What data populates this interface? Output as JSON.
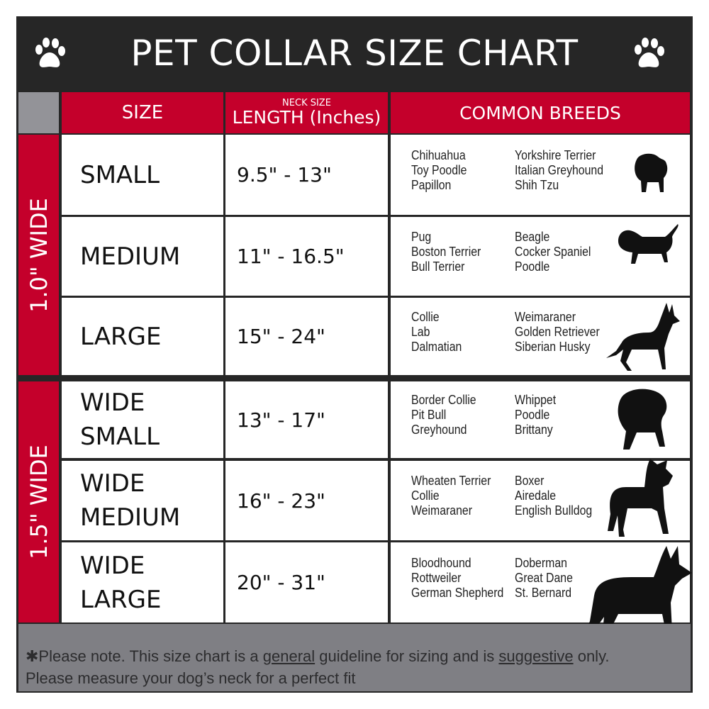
{
  "title": "PET COLLAR SIZE CHART",
  "headers": {
    "size": "SIZE",
    "length_small": "NECK SIZE",
    "length": "LENGTH (Inches)",
    "breeds": "COMMON BREEDS"
  },
  "groups": [
    {
      "label": "1.0\" WIDE"
    },
    {
      "label": "1.5\" WIDE"
    }
  ],
  "rows": [
    {
      "size": [
        "SMALL"
      ],
      "length": "9.5\" - 13\"",
      "breeds_a": [
        "Chihuahua",
        "Toy Poodle",
        "Papillon"
      ],
      "breeds_b": [
        "Yorkshire Terrier",
        "Italian Greyhound",
        "Shih Tzu"
      ],
      "icon": "small-dog-silhouette-icon"
    },
    {
      "size": [
        "MEDIUM"
      ],
      "length": "11\" - 16.5\"",
      "breeds_a": [
        "Pug",
        "Boston Terrier",
        "Bull Terrier"
      ],
      "breeds_b": [
        "Beagle",
        "Cocker Spaniel",
        "Poodle"
      ],
      "icon": "dachshund-silhouette-icon"
    },
    {
      "size": [
        "LARGE"
      ],
      "length": "15\" - 24\"",
      "breeds_a": [
        "Collie",
        "Lab",
        "Dalmatian"
      ],
      "breeds_b": [
        "Weimaraner",
        "Golden Retriever",
        "Siberian Husky"
      ],
      "icon": "shepherd-silhouette-icon"
    },
    {
      "size": [
        "WIDE",
        "SMALL"
      ],
      "length": "13\" - 17\"",
      "breeds_a": [
        "Border Collie",
        "Pit Bull",
        "Greyhound"
      ],
      "breeds_b": [
        "Whippet",
        "Poodle",
        "Brittany"
      ],
      "icon": "bulldog-silhouette-icon"
    },
    {
      "size": [
        "WIDE",
        "MEDIUM"
      ],
      "length": "16\" - 23\"",
      "breeds_a": [
        "Wheaten Terrier",
        "Collie",
        "Weimaraner"
      ],
      "breeds_b": [
        "Boxer",
        "Airedale",
        "English Bulldog"
      ],
      "icon": "pitbull-silhouette-icon"
    },
    {
      "size": [
        "WIDE",
        "LARGE"
      ],
      "length": "20\" - 31\"",
      "breeds_a": [
        "Bloodhound",
        "Rottweiler",
        "German Shepherd"
      ],
      "breeds_b": [
        "Doberman",
        "Great Dane",
        "St. Bernard"
      ],
      "icon": "doberman-silhouette-icon"
    }
  ],
  "footer": {
    "p1": "✱Please note. This size chart is a ",
    "u1": "general",
    "p2": " guideline for sizing and is ",
    "u2": "suggestive",
    "p3": " only.",
    "line2": "Please measure your dog’s neck for a perfect fit"
  },
  "colors": {
    "red": "#c4002b",
    "dark": "#262626",
    "gray": "#7f7f84"
  }
}
